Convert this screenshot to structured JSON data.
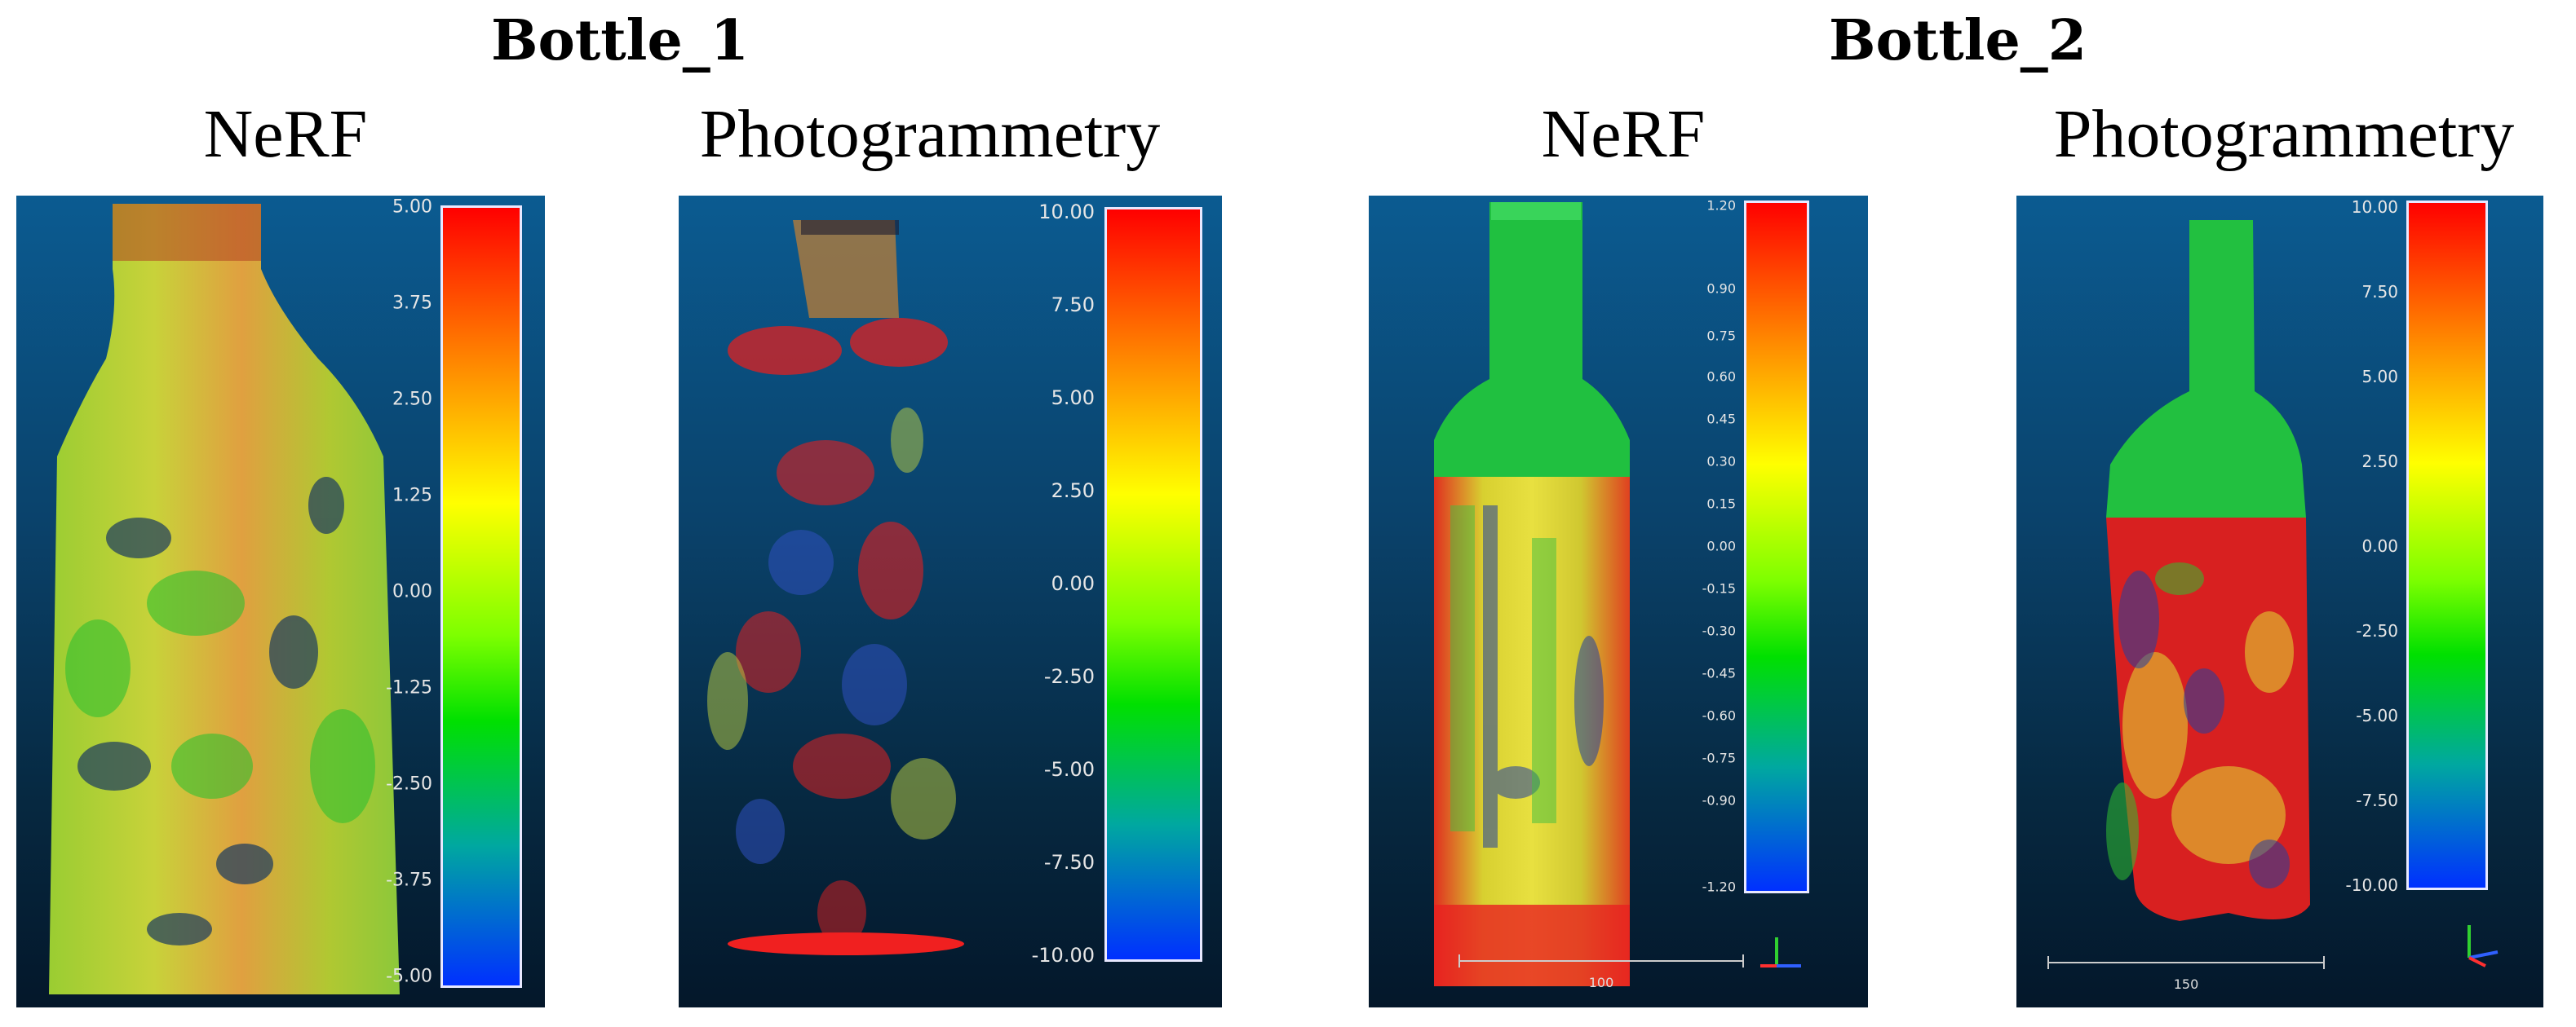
{
  "groups": [
    {
      "title": "Bottle_1",
      "panels": [
        {
          "method": "NeRF",
          "colorbar_ticks": [
            "5.00",
            "3.75",
            "2.50",
            "1.25",
            "0.00",
            "-1.25",
            "-2.50",
            "-3.75",
            "-5.00"
          ]
        },
        {
          "method": "Photogrammetry",
          "colorbar_ticks": [
            "10.00",
            "7.50",
            "5.00",
            "2.50",
            "0.00",
            "-2.50",
            "-5.00",
            "-7.50",
            "-10.00"
          ]
        }
      ]
    },
    {
      "title": "Bottle_2",
      "panels": [
        {
          "method": "NeRF",
          "colorbar_ticks": [
            "1.20",
            "0.90",
            "0.75",
            "0.60",
            "0.45",
            "0.30",
            "0.15",
            "0.00",
            "-0.15",
            "-0.30",
            "-0.45",
            "-0.60",
            "-0.75",
            "-0.90",
            "-1.20"
          ],
          "scale_label": "100"
        },
        {
          "method": "Photogrammetry",
          "colorbar_ticks": [
            "10.00",
            "7.50",
            "5.00",
            "2.50",
            "0.00",
            "-2.50",
            "-5.00",
            "-7.50",
            "-10.00"
          ],
          "scale_label": "150"
        }
      ]
    }
  ],
  "colors": {
    "panel_background_top": "#0b5b91",
    "panel_background_bottom": "#04172a",
    "scale_high": "#ff0000",
    "scale_mid": "#ffff00",
    "scale_zero": "#00e000",
    "scale_low": "#0030ff"
  }
}
